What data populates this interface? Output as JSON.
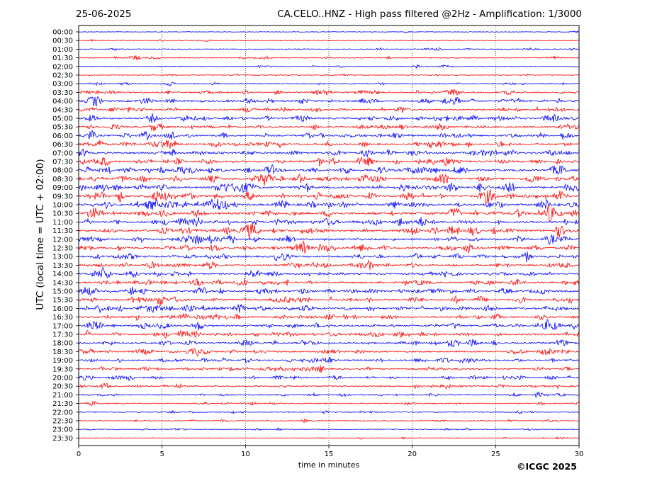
{
  "header": {
    "date": "25-06-2025",
    "title": "CA.CELO..HNZ - High pass filtered @2Hz - Amplification: 1/3000"
  },
  "footer": {
    "copyright": "©ICGC 2025"
  },
  "chart_data": {
    "type": "line",
    "title": "CA.CELO..HNZ - High pass filtered @2Hz - Amplification: 1/3000",
    "xlabel": "time in minutes",
    "ylabel": "UTC (local time = UTC + 02:00)",
    "xlim": [
      0,
      30
    ],
    "x_ticks": [
      0,
      5,
      10,
      15,
      20,
      25,
      30
    ],
    "grid": "vertical dotted lines at x ticks",
    "row_labels": [
      "00:00",
      "00:30",
      "01:00",
      "01:30",
      "02:00",
      "02:30",
      "03:00",
      "03:30",
      "04:00",
      "04:30",
      "05:00",
      "05:30",
      "06:00",
      "06:30",
      "07:00",
      "07:30",
      "08:00",
      "08:30",
      "09:00",
      "09:30",
      "10:00",
      "10:30",
      "11:00",
      "11:30",
      "12:00",
      "12:30",
      "13:00",
      "13:30",
      "14:00",
      "14:30",
      "15:00",
      "15:30",
      "16:00",
      "16:30",
      "17:00",
      "17:30",
      "18:00",
      "18:30",
      "19:00",
      "19:30",
      "20:00",
      "20:30",
      "21:00",
      "21:30",
      "22:00",
      "22:30",
      "23:00",
      "23:30"
    ],
    "trace_colors": [
      "#0000ff",
      "#ff0000"
    ],
    "activity": [
      0.05,
      0.08,
      0.2,
      0.25,
      0.2,
      0.12,
      0.3,
      0.55,
      0.75,
      0.6,
      0.8,
      0.7,
      0.75,
      0.8,
      0.85,
      0.9,
      0.95,
      0.95,
      0.95,
      1.0,
      1.0,
      1.0,
      0.95,
      0.95,
      0.9,
      0.85,
      0.8,
      0.75,
      0.75,
      0.75,
      0.8,
      0.8,
      0.85,
      0.75,
      0.8,
      0.85,
      0.7,
      0.65,
      0.7,
      0.6,
      0.55,
      0.5,
      0.4,
      0.3,
      0.25,
      0.2,
      0.2,
      0.15
    ]
  }
}
